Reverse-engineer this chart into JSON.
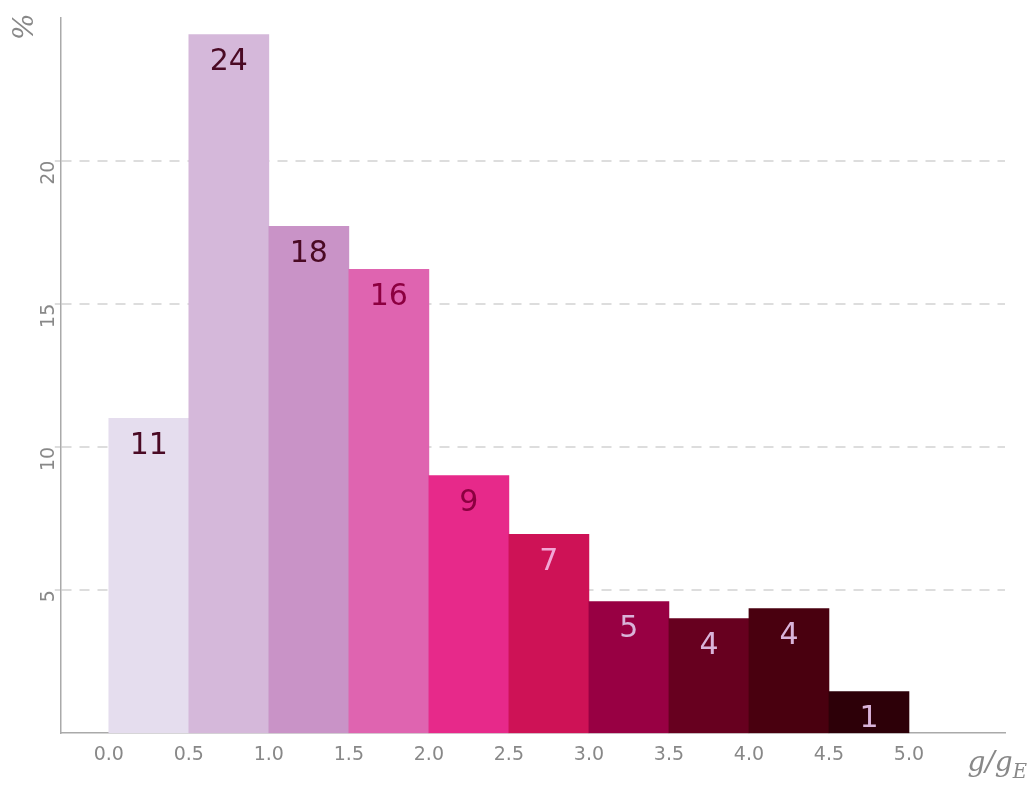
{
  "chart_data": {
    "type": "histogram",
    "xlabel": "g/g$_{E}$",
    "ylabel": "%",
    "bins": [
      0,
      0.5,
      1,
      1.5,
      2,
      2.5,
      3,
      3.5,
      4,
      4.5,
      5
    ],
    "values": [
      11.0,
      24.4,
      17.7,
      16.2,
      9.0,
      6.95,
      4.6,
      4.0,
      4.35,
      1.45
    ],
    "value_labels": [
      "11",
      "24",
      "18",
      "16",
      "9",
      "7",
      "5",
      "4",
      "4",
      "1"
    ],
    "colors": [
      "#e5ddee",
      "#d5b8da",
      "#c993c7",
      "#df64b0",
      "#e7298a",
      "#ce1256",
      "#980043",
      "#67001f",
      "#49000f",
      "#2d0008"
    ],
    "xlim": [
      -0.3,
      5.6
    ],
    "ylim": [
      0,
      25
    ],
    "xticks": [
      {
        "value": 0,
        "label": "0.0"
      },
      {
        "value": 0.5,
        "label": "0.5"
      },
      {
        "value": 1,
        "label": "1.0"
      },
      {
        "value": 1.5,
        "label": "1.5"
      },
      {
        "value": 2,
        "label": "2.0"
      },
      {
        "value": 2.5,
        "label": "2.5"
      },
      {
        "value": 3,
        "label": "3.0"
      },
      {
        "value": 3.5,
        "label": "3.5"
      },
      {
        "value": 4,
        "label": "4.0"
      },
      {
        "value": 4.5,
        "label": "4.5"
      },
      {
        "value": 5,
        "label": "5.0"
      }
    ],
    "yticks": [
      5,
      10,
      15,
      20
    ],
    "grid": "y",
    "legend": false
  }
}
